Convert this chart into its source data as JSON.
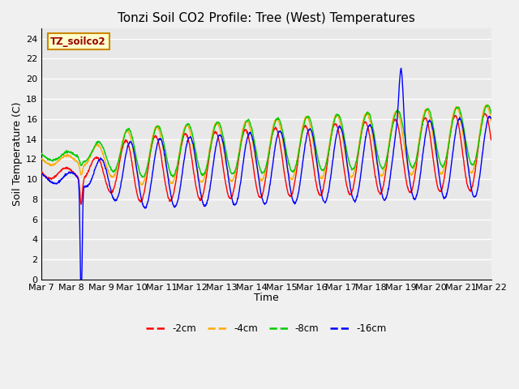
{
  "title": "Tonzi Soil CO2 Profile: Tree (West) Temperatures",
  "xlabel": "Time",
  "ylabel": "Soil Temperature (C)",
  "ylim": [
    0,
    25
  ],
  "yticks": [
    0,
    2,
    4,
    6,
    8,
    10,
    12,
    14,
    16,
    18,
    20,
    22,
    24
  ],
  "legend_label": "TZ_soilco2",
  "series_labels": [
    "-2cm",
    "-4cm",
    "-8cm",
    "-16cm"
  ],
  "series_colors": [
    "#ff0000",
    "#ffaa00",
    "#00cc00",
    "#0000ff"
  ],
  "background_color": "#e8e8e8",
  "plot_bg_color": "#ffffff",
  "grid_color": "#ffffff",
  "title_fontsize": 11,
  "axis_fontsize": 9,
  "tick_fontsize": 8
}
